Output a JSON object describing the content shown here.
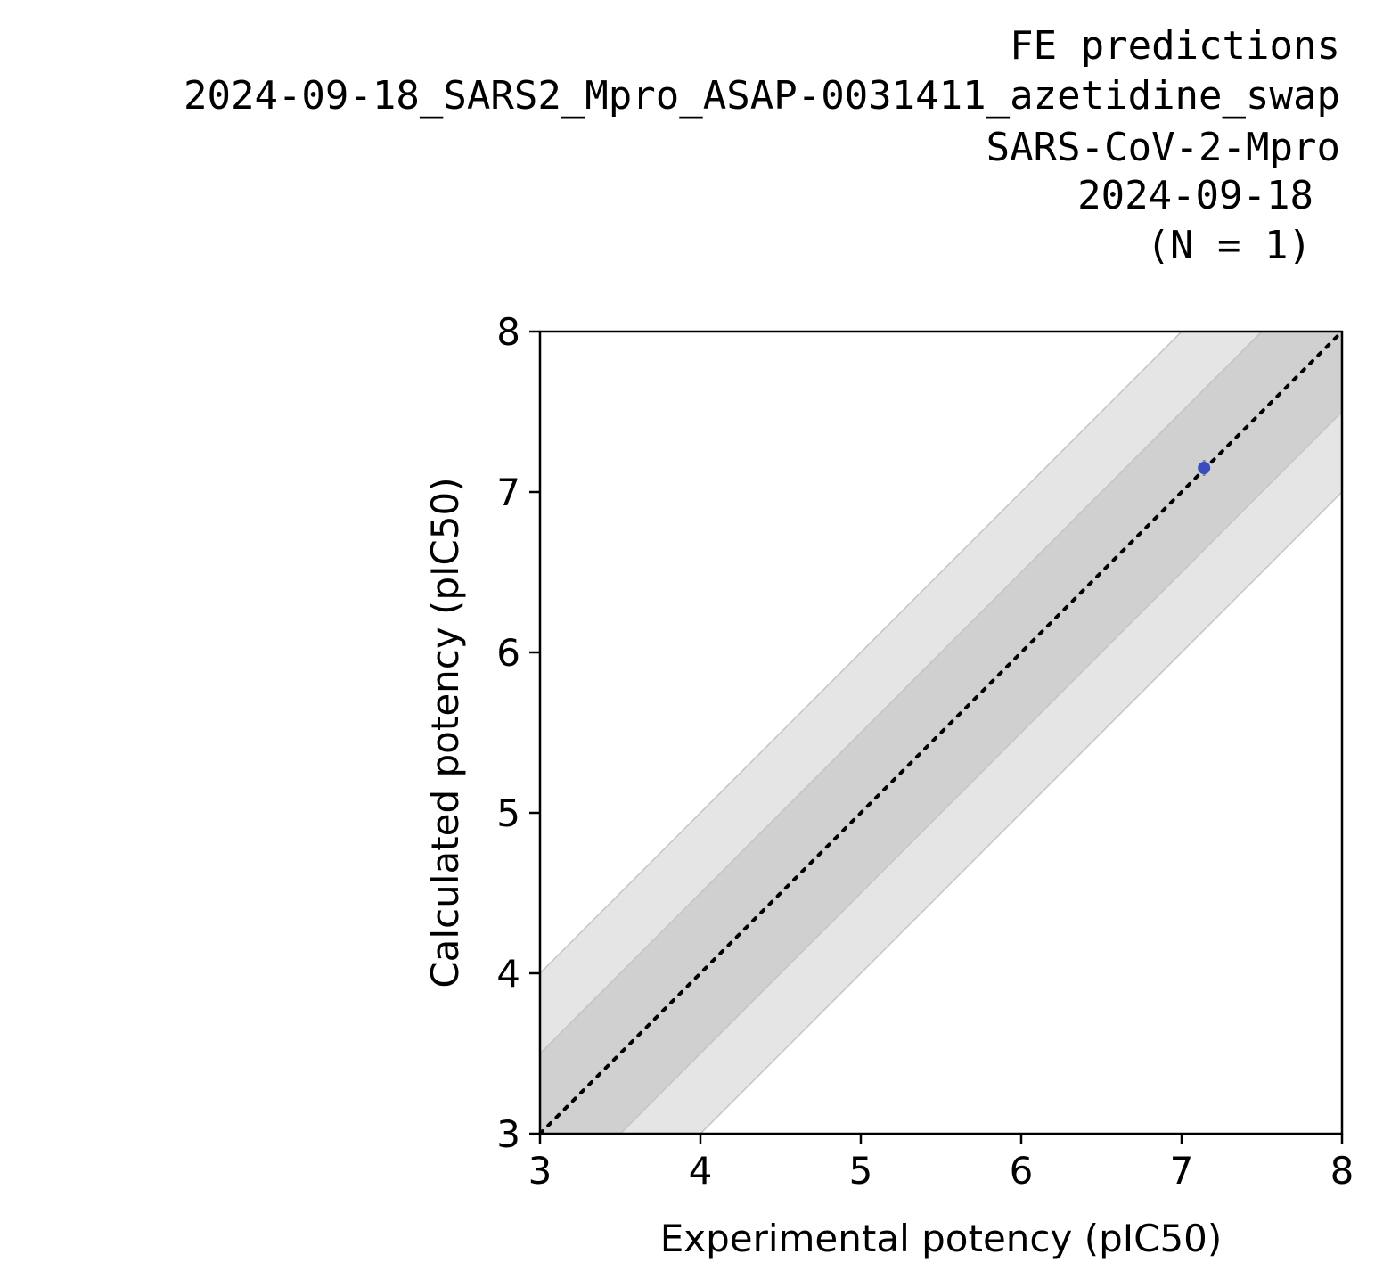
{
  "chart_data": {
    "type": "scatter",
    "title_lines": [
      "FE predictions",
      "2024-09-18_SARS2_Mpro_ASAP-0031411_azetidine_swap",
      "SARS-CoV-2-Mpro",
      "2024-09-18",
      "(N = 1)"
    ],
    "xlabel": "Experimental potency (pIC50)",
    "ylabel": "Calculated potency (pIC50)",
    "xlim": [
      3,
      8
    ],
    "ylim": [
      3,
      8
    ],
    "xticks": [
      "3",
      "4",
      "5",
      "6",
      "7",
      "8"
    ],
    "yticks": [
      "3",
      "4",
      "5",
      "6",
      "7",
      "8"
    ],
    "grid": false,
    "bands": [
      {
        "offset": 1.0,
        "color": "#e5e5e5"
      },
      {
        "offset": 0.5,
        "color": "#d0d0d0"
      }
    ],
    "identity_line": {
      "style": "dotted",
      "color": "#000000"
    },
    "points": [
      {
        "x": 7.14,
        "y": 7.15,
        "yerr": 0.05,
        "color": "#3a4cc0"
      }
    ]
  }
}
